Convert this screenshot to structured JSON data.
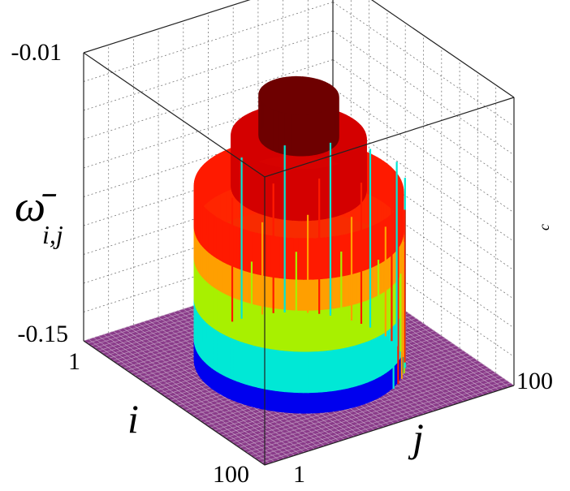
{
  "chart_data": {
    "type": "bar3d",
    "title": "",
    "ylabel_main": "ω̄",
    "ylabel_sub": "i,j",
    "xlabel": "i",
    "zlabel": "j",
    "side_label": "c",
    "zlim": [
      -0.15,
      -0.01
    ],
    "z_ticks": [
      "-0.01",
      "-0.15"
    ],
    "i_ticks": [
      "1",
      "100"
    ],
    "j_ticks": [
      "1",
      "100"
    ],
    "grid": true,
    "grid_size": 100,
    "floor_value": -0.15,
    "colors": {
      "floor": "#8a3c8a",
      "floor_line": "#c7a4c7",
      "bands": [
        "#0000ee",
        "#00e8d6",
        "#a8f000",
        "#ff9f00",
        "#ff1a00",
        "#d40000",
        "#6e0000"
      ]
    },
    "levels": [
      {
        "max_radius": 50,
        "value": -0.14,
        "color": "#0000ee"
      },
      {
        "max_radius": 50,
        "value": -0.12,
        "color": "#00e8d6"
      },
      {
        "max_radius": 50,
        "value": -0.1,
        "color": "#a8f000"
      },
      {
        "max_radius": 50,
        "value": -0.085,
        "color": "#ff9f00"
      },
      {
        "max_radius": 50,
        "value": -0.065,
        "color": "#ff1a00"
      },
      {
        "max_radius": 30,
        "value": -0.04,
        "color": "#d40000"
      },
      {
        "max_radius": 17,
        "value": -0.02,
        "color": "#6e0000"
      }
    ]
  }
}
